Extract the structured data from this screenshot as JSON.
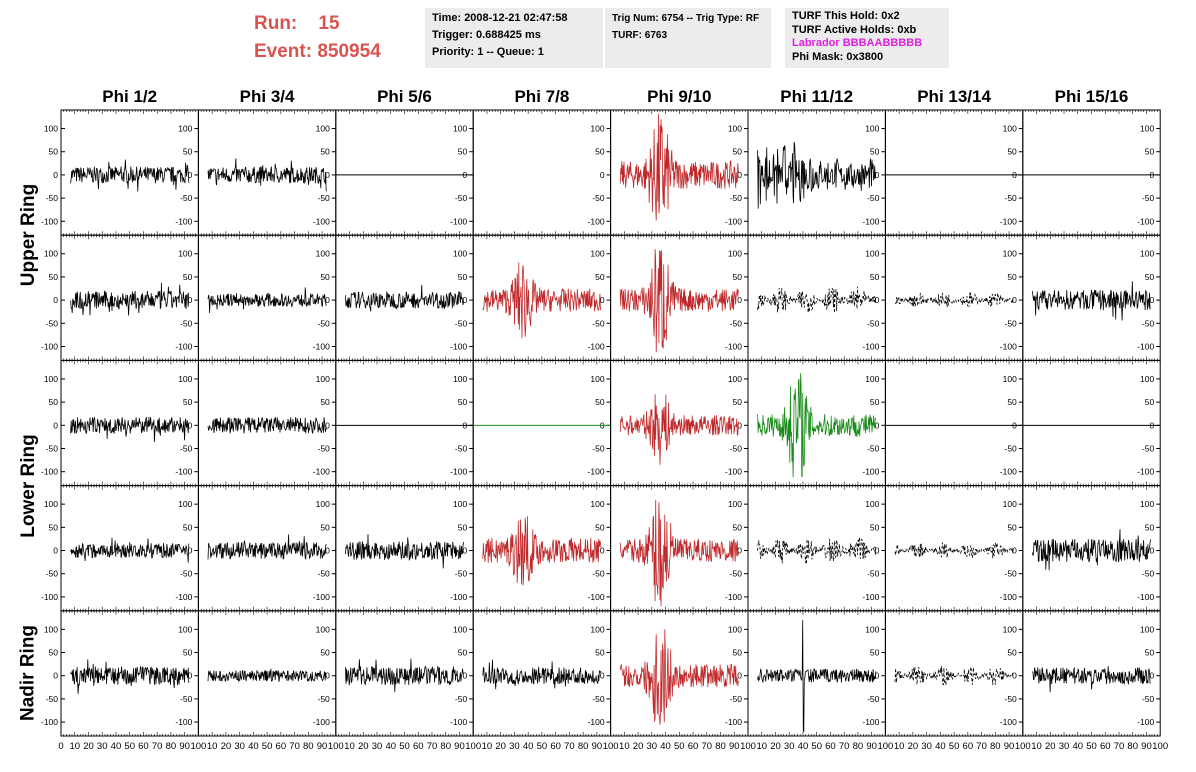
{
  "header": {
    "run_label": "Run:",
    "run_value": "15",
    "event_label": "Event:",
    "event_value": "850954",
    "box1": [
      "Time: 2008-12-21 02:47:58",
      "Trigger: 0.688425 ms",
      "Priority: 1 -- Queue: 1"
    ],
    "box2": [
      "Trig Num: 6754 -- Trig Type: RF",
      "",
      "TURF: 6763"
    ],
    "box3": [
      "TURF This Hold: 0x2",
      "TURF Active Holds: 0xb"
    ],
    "box3_labrador": "Labrador BBBAABBBBB",
    "box3_phimask": "Phi Mask: 0x3800"
  },
  "colors": {
    "run": "#d9534f",
    "triggered": "#c0292b",
    "green": "#1a8c1a",
    "normal": "#000000",
    "labrador": "#e020e0"
  },
  "chart_data": {
    "type": "line",
    "phi_labels": [
      "Phi 1/2",
      "Phi 3/4",
      "Phi 5/6",
      "Phi 7/8",
      "Phi 9/10",
      "Phi 11/12",
      "Phi 13/14",
      "Phi 15/16"
    ],
    "ring_labels": [
      {
        "text": "Upper Ring",
        "rows": [
          0,
          1
        ]
      },
      {
        "text": "Lower Ring",
        "rows": [
          2,
          3
        ]
      },
      {
        "text": "Nadir Ring",
        "rows": [
          4
        ]
      }
    ],
    "xlim": [
      0,
      100
    ],
    "ylim": [
      -130,
      140
    ],
    "x_tick_labels": [
      "0",
      "10",
      "20",
      "30",
      "40",
      "50",
      "60",
      "70",
      "80",
      "90",
      "100"
    ],
    "y_tick_labels": [
      "100",
      "50",
      "0",
      "-50",
      "-100"
    ],
    "grid": false,
    "rows": [
      [
        {
          "s": "noise",
          "a": 18,
          "c": "normal"
        },
        {
          "s": "noise",
          "a": 18,
          "c": "normal"
        },
        {
          "s": "flat",
          "a": 0,
          "c": "normal"
        },
        {
          "s": "empty",
          "a": 0,
          "c": "normal"
        },
        {
          "s": "burst",
          "a": 30,
          "b": 110,
          "c": "triggered"
        },
        {
          "s": "mod",
          "a": 20,
          "b": 60,
          "c": "normal"
        },
        {
          "s": "flat",
          "a": 0,
          "c": "normal"
        },
        {
          "s": "flat",
          "a": 0,
          "c": "normal"
        }
      ],
      [
        {
          "s": "noise",
          "a": 20,
          "c": "normal"
        },
        {
          "s": "noise",
          "a": 14,
          "c": "normal"
        },
        {
          "s": "noise",
          "a": 18,
          "c": "normal"
        },
        {
          "s": "burst",
          "a": 25,
          "b": 70,
          "c": "triggered"
        },
        {
          "s": "burst",
          "a": 25,
          "b": 120,
          "c": "triggered"
        },
        {
          "s": "dash",
          "a": 30,
          "c": "normal"
        },
        {
          "s": "dash",
          "a": 18,
          "c": "normal"
        },
        {
          "s": "noise",
          "a": 22,
          "c": "normal"
        }
      ],
      [
        {
          "s": "noise",
          "a": 18,
          "c": "normal"
        },
        {
          "s": "noise",
          "a": 18,
          "c": "normal"
        },
        {
          "s": "flat",
          "a": 0,
          "c": "normal"
        },
        {
          "s": "flat",
          "a": 0,
          "c": "green"
        },
        {
          "s": "burst",
          "a": 22,
          "b": 65,
          "c": "triggered"
        },
        {
          "s": "burst",
          "a": 25,
          "b": 110,
          "c": "green"
        },
        {
          "s": "flat",
          "a": 0,
          "c": "normal"
        },
        {
          "s": "flat",
          "a": 0,
          "c": "normal"
        }
      ],
      [
        {
          "s": "noise",
          "a": 16,
          "c": "normal"
        },
        {
          "s": "noise",
          "a": 18,
          "c": "normal"
        },
        {
          "s": "noise",
          "a": 20,
          "c": "normal"
        },
        {
          "s": "burst",
          "a": 28,
          "b": 60,
          "c": "triggered"
        },
        {
          "s": "burst",
          "a": 25,
          "b": 120,
          "c": "triggered"
        },
        {
          "s": "dash",
          "a": 30,
          "c": "normal"
        },
        {
          "s": "dash",
          "a": 18,
          "c": "normal"
        },
        {
          "s": "noise",
          "a": 25,
          "c": "normal"
        }
      ],
      [
        {
          "s": "noise",
          "a": 20,
          "c": "normal"
        },
        {
          "s": "noise",
          "a": 12,
          "c": "normal"
        },
        {
          "s": "noise",
          "a": 20,
          "c": "normal"
        },
        {
          "s": "noise",
          "a": 18,
          "c": "normal"
        },
        {
          "s": "burst",
          "a": 25,
          "b": 110,
          "c": "triggered"
        },
        {
          "s": "spike",
          "a": 15,
          "b": 120,
          "c": "normal"
        },
        {
          "s": "dash",
          "a": 22,
          "c": "normal"
        },
        {
          "s": "noise",
          "a": 18,
          "c": "normal"
        }
      ]
    ]
  }
}
